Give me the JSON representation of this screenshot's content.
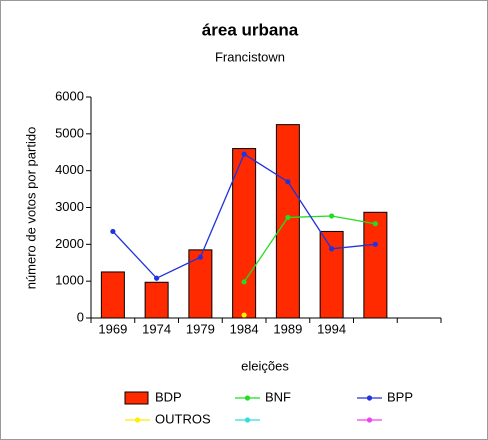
{
  "chart_data": {
    "type": "bar",
    "title": "área urbana",
    "subtitle": "Francistown",
    "y_label": "número de votos por partido",
    "x_label": "eleições",
    "categories": [
      "1969",
      "1974",
      "1979",
      "1984",
      "1989",
      "1994",
      null,
      null
    ],
    "ylim": [
      0,
      6000
    ],
    "yticks": [
      0,
      1000,
      2000,
      3000,
      4000,
      5000,
      6000
    ],
    "series": [
      {
        "name": "BDP",
        "type": "bar",
        "color": "#ff2a00",
        "values": [
          1250,
          970,
          1850,
          4600,
          5250,
          2350,
          2870,
          null
        ]
      },
      {
        "name": "BNF",
        "type": "line",
        "color": "#22dd22",
        "values": [
          null,
          null,
          null,
          980,
          2730,
          2770,
          2560,
          null
        ]
      },
      {
        "name": "BPP",
        "type": "line",
        "color": "#2233dd",
        "values": [
          2350,
          1080,
          1650,
          4450,
          3700,
          1880,
          2000,
          null
        ]
      },
      {
        "name": "OUTROS",
        "type": "line",
        "color": "#ffee00",
        "values": [
          null,
          null,
          null,
          80,
          null,
          null,
          null,
          null
        ]
      },
      {
        "type": "line",
        "color": "#33dddd",
        "values": [
          null,
          null,
          null,
          null,
          null,
          null,
          null,
          null
        ]
      },
      {
        "type": "line",
        "color": "#ee44ee",
        "values": [
          null,
          null,
          null,
          null,
          null,
          null,
          null,
          null
        ]
      }
    ]
  }
}
